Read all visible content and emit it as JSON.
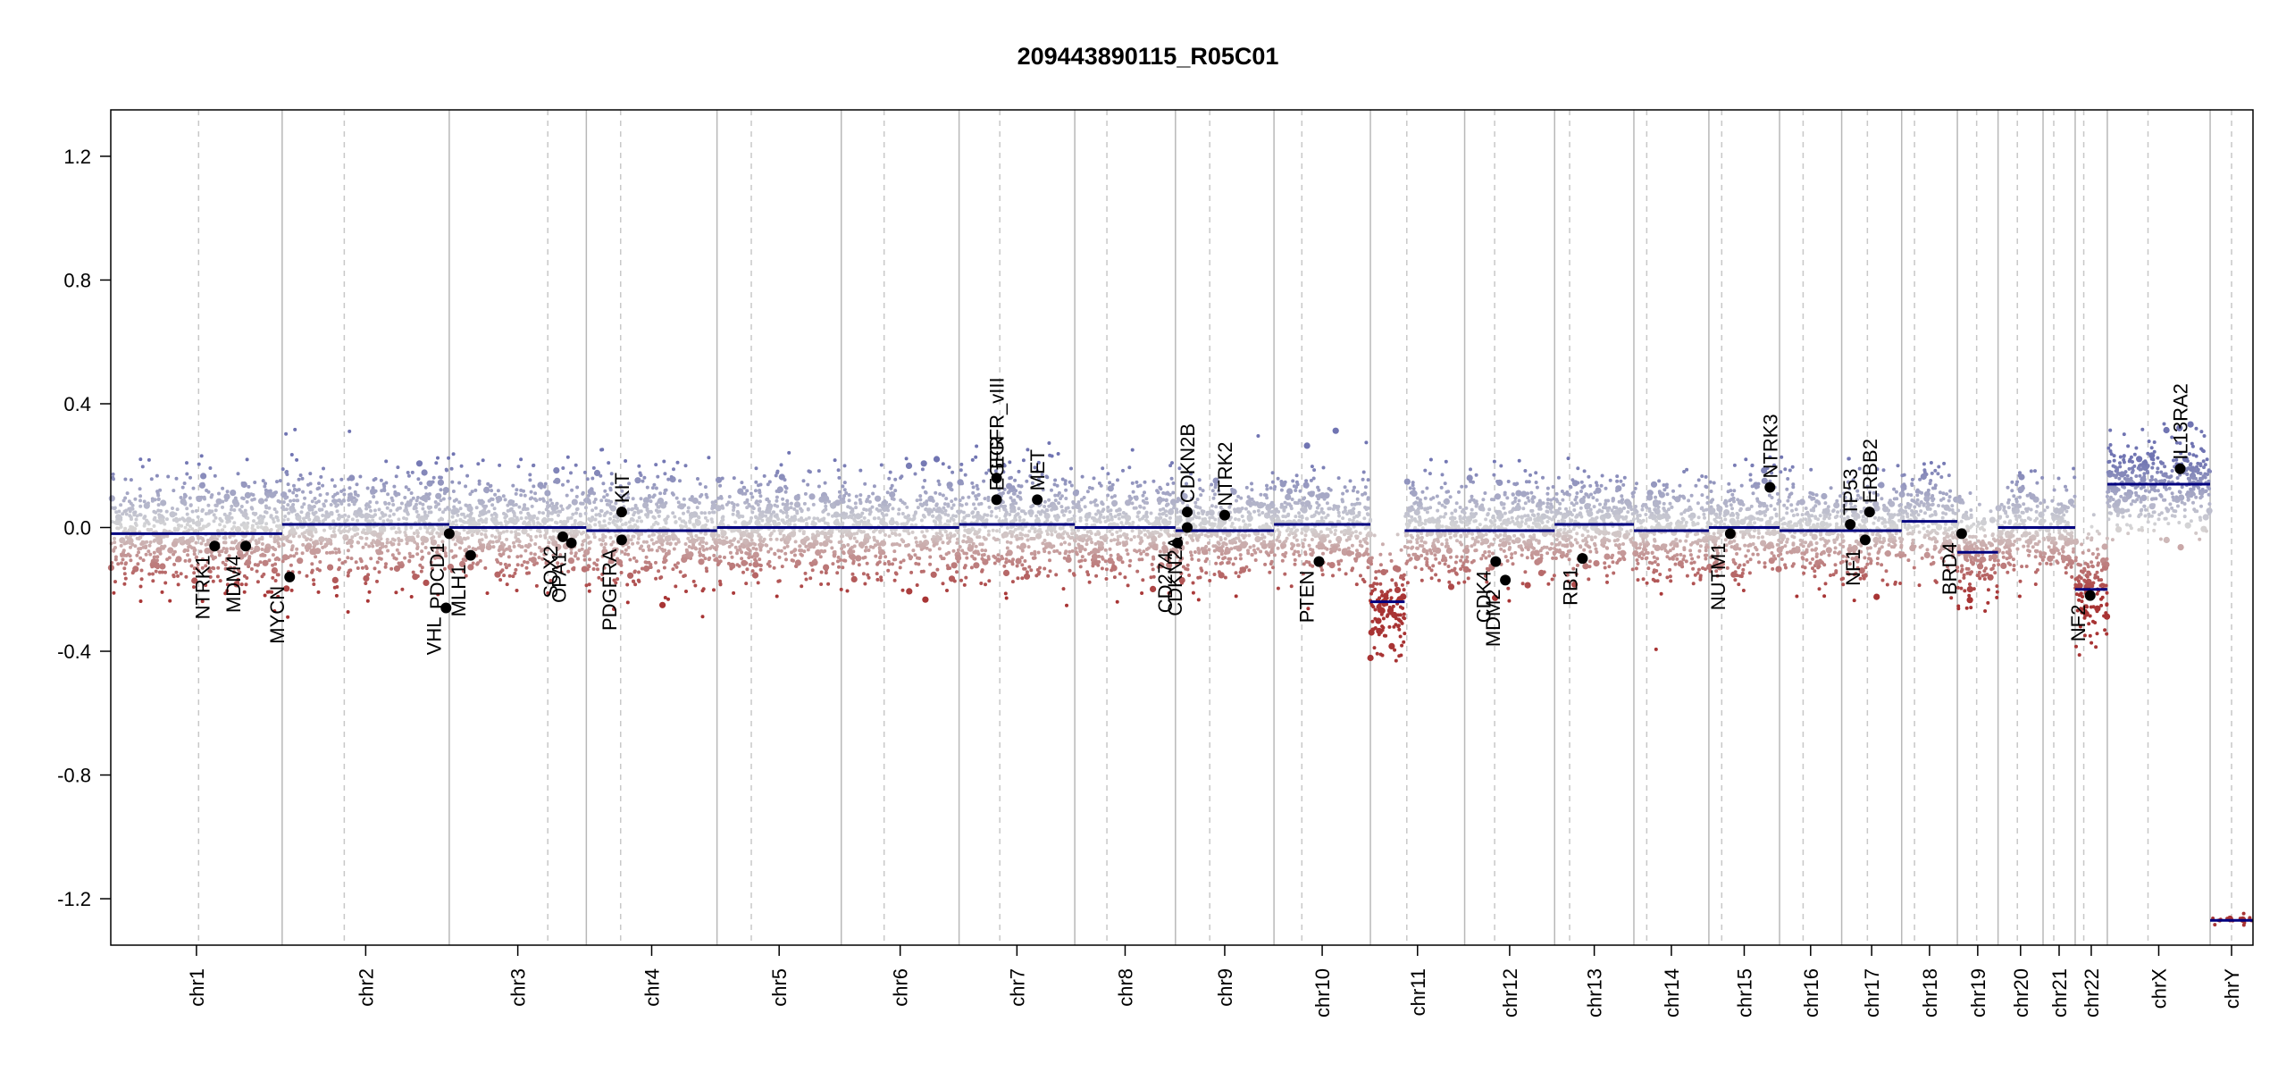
{
  "chart_data": {
    "type": "scatter",
    "title": "209443890115_R05C01",
    "xlabel": "",
    "ylabel": "",
    "ylim": [
      -1.35,
      1.35
    ],
    "y_ticks": [
      "1.2",
      "0.8",
      "0.4",
      "0.0",
      "-0.4",
      "-0.8",
      "-1.2"
    ],
    "y_tick_values": [
      1.2,
      0.8,
      0.4,
      0.0,
      -0.4,
      -0.8,
      -1.2
    ],
    "grid": "chromosome separators",
    "legend": "none",
    "colors": {
      "gain": "#7b7fb8",
      "loss": "#a63a3a",
      "neutral": "#d0d0d0",
      "segment": "#00007f",
      "gene_dot": "#000000",
      "boundary": "#b8b8b8",
      "centromere": "#c8c8c8"
    },
    "chromosomes": [
      {
        "name": "chr1",
        "start": 0.0,
        "end": 0.08,
        "cent": 0.041,
        "seg": -0.02,
        "noise": 0.09
      },
      {
        "name": "chr2",
        "start": 0.08,
        "end": 0.158,
        "cent": 0.109,
        "seg": 0.01,
        "noise": 0.09
      },
      {
        "name": "chr3",
        "start": 0.158,
        "end": 0.222,
        "cent": 0.204,
        "seg": 0.0,
        "noise": 0.08
      },
      {
        "name": "chr4",
        "start": 0.222,
        "end": 0.283,
        "cent": 0.238,
        "seg": -0.01,
        "noise": 0.09
      },
      {
        "name": "chr5",
        "start": 0.283,
        "end": 0.341,
        "cent": 0.299,
        "seg": 0.0,
        "noise": 0.08
      },
      {
        "name": "chr6",
        "start": 0.341,
        "end": 0.396,
        "cent": 0.361,
        "seg": 0.0,
        "noise": 0.08
      },
      {
        "name": "chr7",
        "start": 0.396,
        "end": 0.45,
        "cent": 0.415,
        "seg": 0.01,
        "noise": 0.09
      },
      {
        "name": "chr8",
        "start": 0.45,
        "end": 0.497,
        "cent": 0.465,
        "seg": 0.0,
        "noise": 0.08
      },
      {
        "name": "chr9",
        "start": 0.497,
        "end": 0.543,
        "cent": 0.513,
        "seg": -0.01,
        "noise": 0.08
      },
      {
        "name": "chr10",
        "start": 0.543,
        "end": 0.588,
        "cent": 0.556,
        "seg": 0.01,
        "noise": 0.08
      },
      {
        "name": "chr11",
        "start": 0.588,
        "end": 0.632,
        "cent": 0.605,
        "seg": -0.01,
        "noise": 0.08,
        "low_start": 0.588,
        "low_end": 0.604,
        "low_seg": -0.24
      },
      {
        "name": "chr12",
        "start": 0.632,
        "end": 0.674,
        "cent": 0.646,
        "seg": -0.01,
        "noise": 0.08
      },
      {
        "name": "chr13",
        "start": 0.674,
        "end": 0.711,
        "cent": 0.681,
        "seg": 0.01,
        "noise": 0.08
      },
      {
        "name": "chr14",
        "start": 0.711,
        "end": 0.746,
        "cent": 0.717,
        "seg": -0.01,
        "noise": 0.08
      },
      {
        "name": "chr15",
        "start": 0.746,
        "end": 0.779,
        "cent": 0.752,
        "seg": 0.0,
        "noise": 0.08
      },
      {
        "name": "chr16",
        "start": 0.779,
        "end": 0.808,
        "cent": 0.79,
        "seg": -0.01,
        "noise": 0.08
      },
      {
        "name": "chr17",
        "start": 0.808,
        "end": 0.836,
        "cent": 0.82,
        "seg": -0.01,
        "noise": 0.08
      },
      {
        "name": "chr18",
        "start": 0.836,
        "end": 0.862,
        "cent": 0.842,
        "seg": 0.02,
        "noise": 0.08
      },
      {
        "name": "chr19",
        "start": 0.862,
        "end": 0.881,
        "cent": 0.871,
        "seg": -0.08,
        "noise": 0.08
      },
      {
        "name": "chr20",
        "start": 0.881,
        "end": 0.902,
        "cent": 0.89,
        "seg": 0.0,
        "noise": 0.08
      },
      {
        "name": "chr21",
        "start": 0.902,
        "end": 0.917,
        "cent": 0.907,
        "seg": 0.0,
        "noise": 0.07
      },
      {
        "name": "chr22",
        "start": 0.917,
        "end": 0.932,
        "cent": 0.921,
        "seg": -0.2,
        "noise": 0.08
      },
      {
        "name": "chrX",
        "start": 0.932,
        "end": 0.98,
        "cent": 0.951,
        "seg": 0.14,
        "noise": 0.07
      },
      {
        "name": "chrY",
        "start": 0.98,
        "end": 1.0,
        "cent": 0.99,
        "seg": -1.27,
        "noise": 0.03,
        "sparse": true
      }
    ],
    "genes": [
      {
        "name": "NTRK1",
        "x": 0.0485,
        "y": -0.06,
        "side": "below"
      },
      {
        "name": "MDM4",
        "x": 0.063,
        "y": -0.06,
        "side": "below"
      },
      {
        "name": "MYCN",
        "x": 0.0835,
        "y": -0.16,
        "side": "below"
      },
      {
        "name": "VHL",
        "x": 0.1565,
        "y": -0.26,
        "side": "below"
      },
      {
        "name": "PDCD1",
        "x": 0.158,
        "y": -0.02,
        "side": "below"
      },
      {
        "name": "MLH1",
        "x": 0.168,
        "y": -0.09,
        "side": "below"
      },
      {
        "name": "SOX2",
        "x": 0.211,
        "y": -0.03,
        "side": "below"
      },
      {
        "name": "OPA1",
        "x": 0.215,
        "y": -0.05,
        "side": "below"
      },
      {
        "name": "KIT",
        "x": 0.2385,
        "y": 0.05,
        "side": "above"
      },
      {
        "name": "PDGFRA",
        "x": 0.2385,
        "y": -0.04,
        "side": "below"
      },
      {
        "name": "EGFR",
        "x": 0.4135,
        "y": 0.09,
        "side": "above"
      },
      {
        "name": "EGFR_vIII",
        "x": 0.4135,
        "y": 0.16,
        "side": "above"
      },
      {
        "name": "MET",
        "x": 0.4325,
        "y": 0.09,
        "side": "above"
      },
      {
        "name": "CD274",
        "x": 0.498,
        "y": -0.05,
        "side": "below"
      },
      {
        "name": "CDKN2A",
        "x": 0.5025,
        "y": 0.0,
        "side": "below"
      },
      {
        "name": "CDKN2B",
        "x": 0.5025,
        "y": 0.05,
        "side": "above"
      },
      {
        "name": "NTRK2",
        "x": 0.52,
        "y": 0.04,
        "side": "above"
      },
      {
        "name": "PTEN",
        "x": 0.564,
        "y": -0.11,
        "side": "below"
      },
      {
        "name": "CDK4",
        "x": 0.6465,
        "y": -0.11,
        "side": "below"
      },
      {
        "name": "MDM2",
        "x": 0.651,
        "y": -0.17,
        "side": "below"
      },
      {
        "name": "RB1",
        "x": 0.687,
        "y": -0.1,
        "side": "below"
      },
      {
        "name": "NUTM1",
        "x": 0.756,
        "y": -0.02,
        "side": "below"
      },
      {
        "name": "NTRK3",
        "x": 0.7745,
        "y": 0.13,
        "side": "above"
      },
      {
        "name": "TP53",
        "x": 0.812,
        "y": 0.01,
        "side": "above"
      },
      {
        "name": "NF1",
        "x": 0.819,
        "y": -0.04,
        "side": "below"
      },
      {
        "name": "ERBB2",
        "x": 0.821,
        "y": 0.05,
        "side": "above"
      },
      {
        "name": "BRD4",
        "x": 0.864,
        "y": -0.02,
        "side": "below"
      },
      {
        "name": "NF2",
        "x": 0.924,
        "y": -0.22,
        "side": "below"
      },
      {
        "name": "IL13RA2",
        "x": 0.966,
        "y": 0.19,
        "side": "above"
      }
    ]
  }
}
